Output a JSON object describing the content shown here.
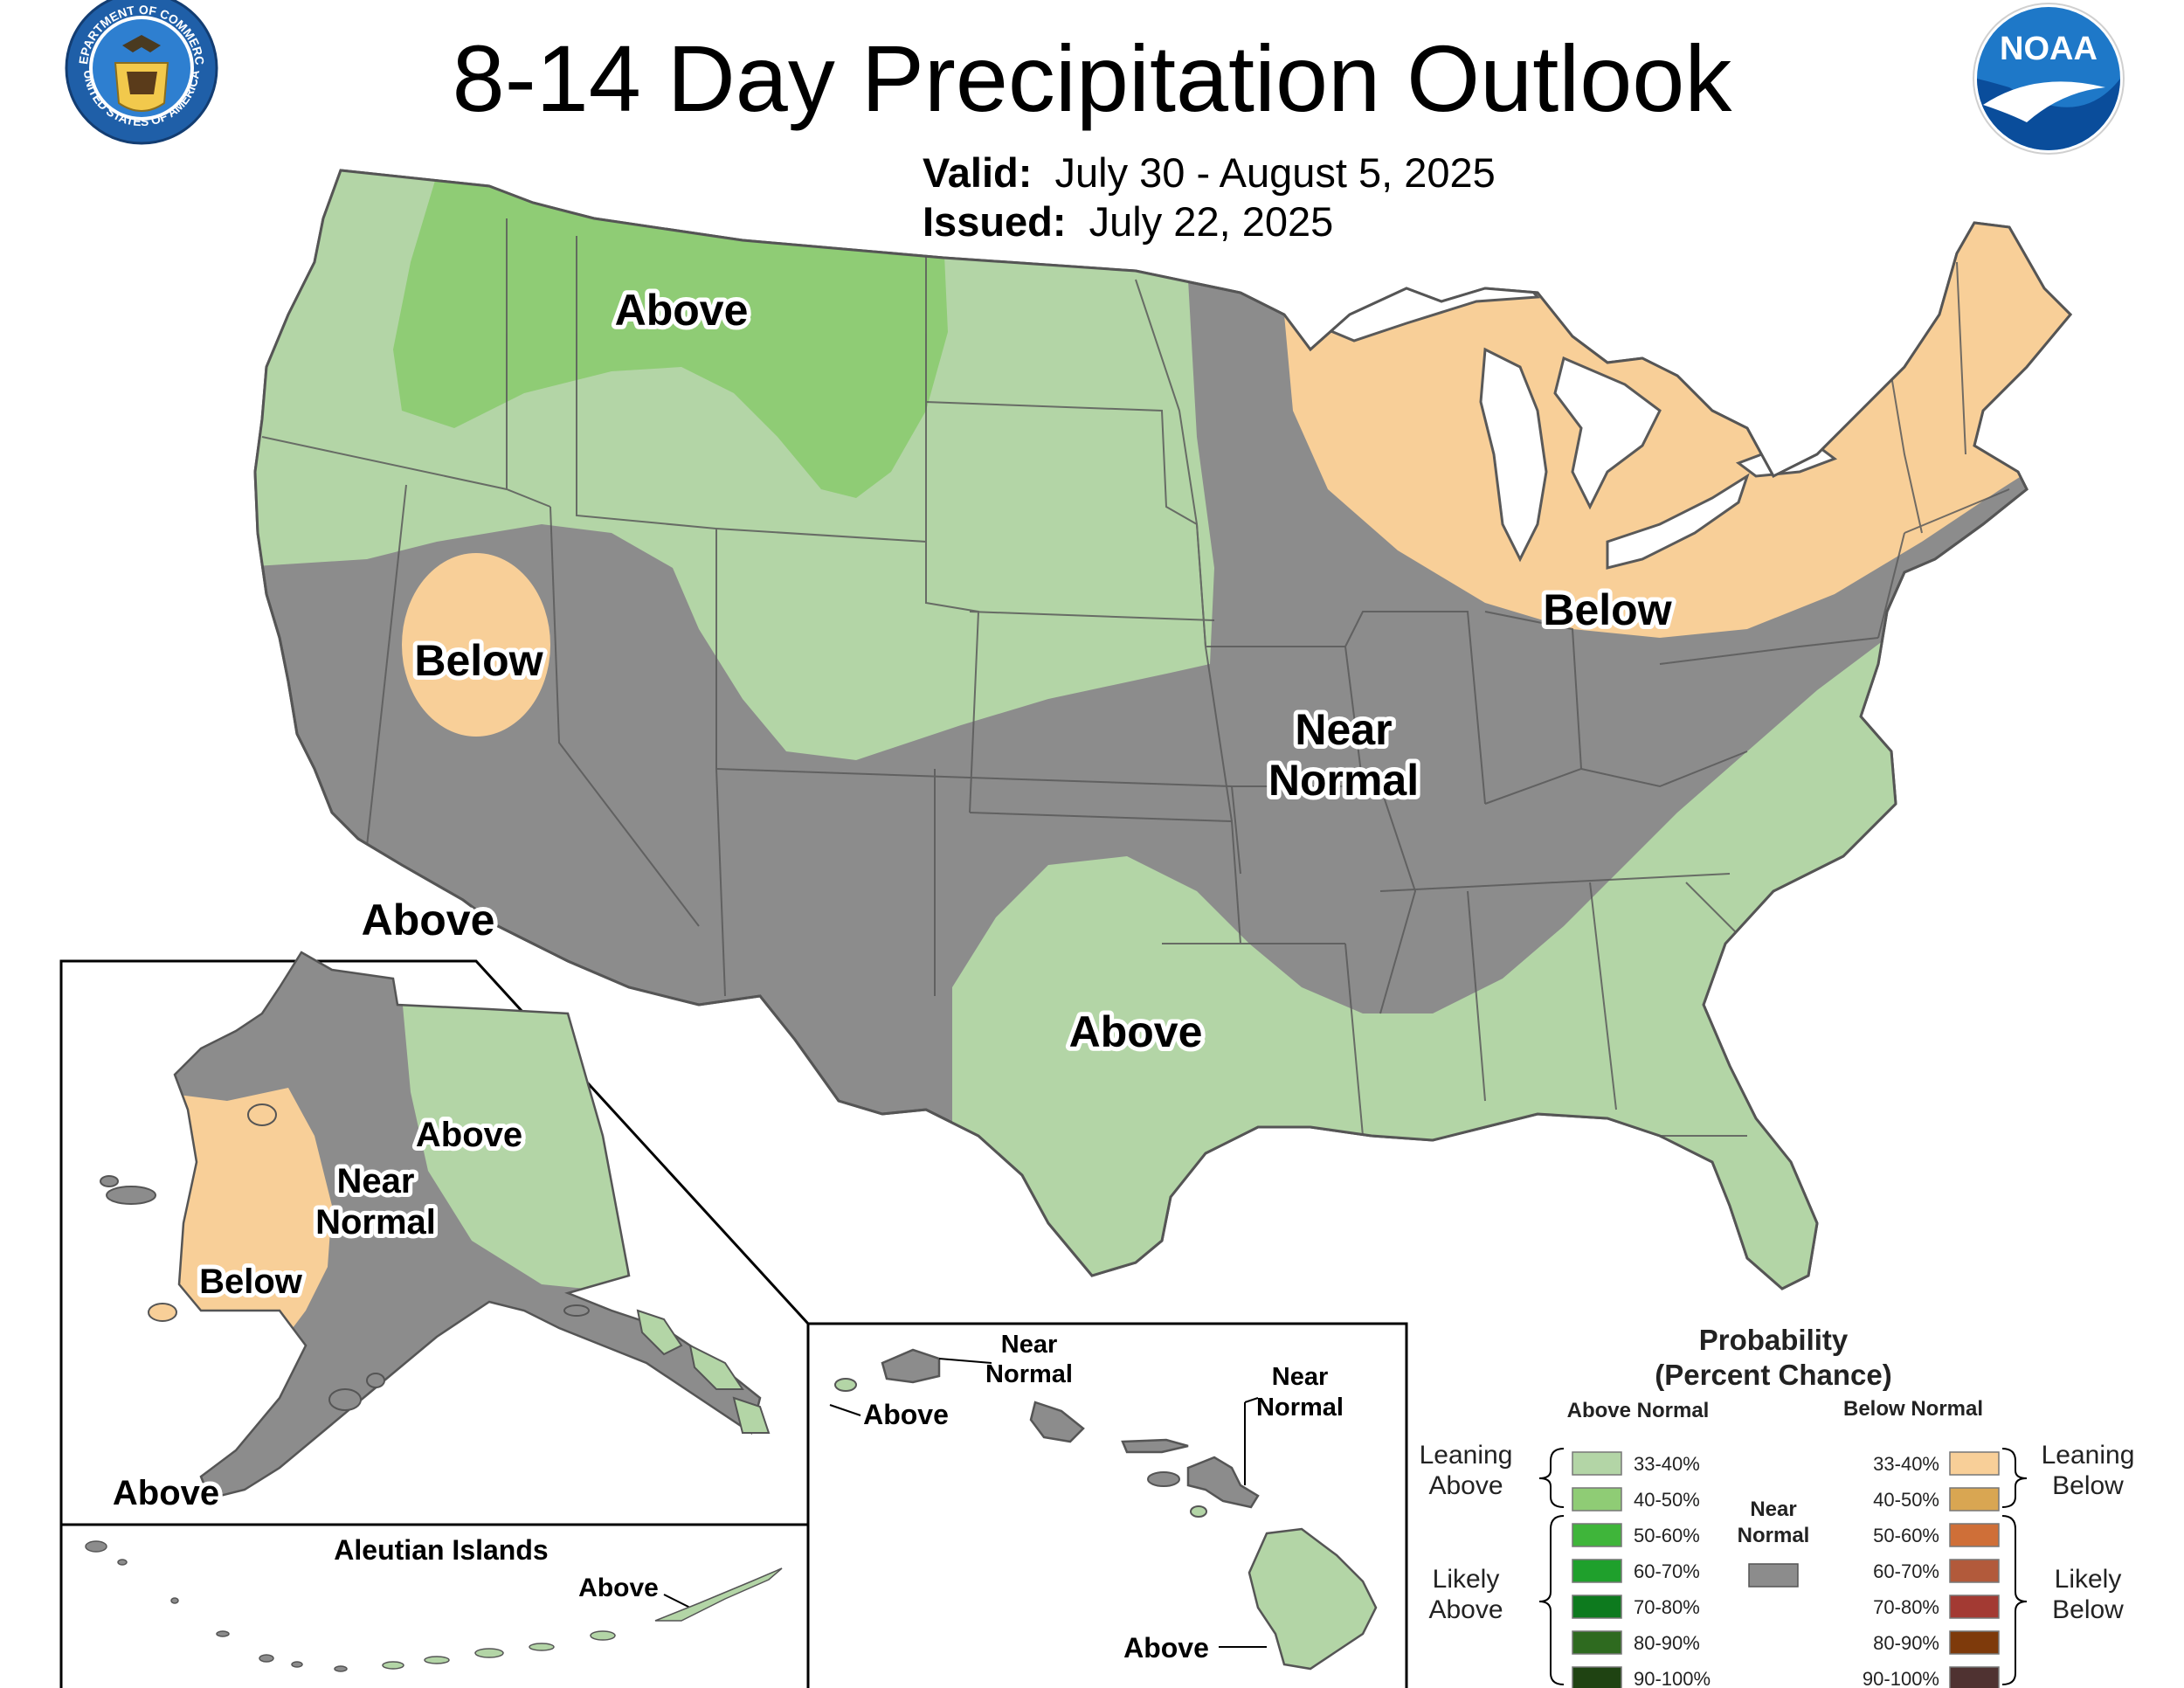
{
  "header": {
    "title": "8-14 Day Precipitation Outlook",
    "valid_label": "Valid:",
    "valid_value": "July 30 - August 5, 2025",
    "issued_label": "Issued:",
    "issued_value": "July 22, 2025"
  },
  "logos": {
    "commerce_top": "DEPARTMENT OF COMMERCE",
    "commerce_bottom": "UNITED STATES OF AMERICA",
    "noaa": "NOAA"
  },
  "colors": {
    "above_33_40": "#b3d5a6",
    "above_40_50": "#8fcc75",
    "near_normal": "#8c8c8c",
    "below_33_40": "#f8cf98",
    "water": "#ffffff",
    "border": "#595959"
  },
  "conus_labels": {
    "above_north": "Above",
    "below_nevada": "Below",
    "below_northeast": "Below",
    "near_normal_line1": "Near",
    "near_normal_line2": "Normal",
    "above_california": "Above",
    "above_texas": "Above"
  },
  "alaska": {
    "above_east": "Above",
    "near_line1": "Near",
    "near_line2": "Normal",
    "below_west": "Below",
    "above_south": "Above",
    "aleutian_title": "Aleutian Islands",
    "aleutian_above": "Above"
  },
  "hawaii": {
    "near1_line1": "Near",
    "near1_line2": "Normal",
    "near2_line1": "Near",
    "near2_line2": "Normal",
    "above_kauai": "Above",
    "above_big_island": "Above"
  },
  "legend": {
    "title_line1": "Probability",
    "title_line2": "(Percent Chance)",
    "above_header": "Above Normal",
    "below_header": "Below Normal",
    "near_line1": "Near",
    "near_line2": "Normal",
    "leaning_above_1": "Leaning",
    "leaning_above_2": "Above",
    "likely_above_1": "Likely",
    "likely_above_2": "Above",
    "leaning_below_1": "Leaning",
    "leaning_below_2": "Below",
    "likely_below_1": "Likely",
    "likely_below_2": "Below",
    "above_bins": [
      {
        "label": "33-40%",
        "color": "#b3d5a6"
      },
      {
        "label": "40-50%",
        "color": "#8fcc75"
      },
      {
        "label": "50-60%",
        "color": "#3fb53a"
      },
      {
        "label": "60-70%",
        "color": "#1fa02c"
      },
      {
        "label": "70-80%",
        "color": "#0d7a1e"
      },
      {
        "label": "80-90%",
        "color": "#2e6a1f"
      },
      {
        "label": "90-100%",
        "color": "#1f4312"
      }
    ],
    "below_bins": [
      {
        "label": "33-40%",
        "color": "#f8cf98"
      },
      {
        "label": "40-50%",
        "color": "#d9a652"
      },
      {
        "label": "50-60%",
        "color": "#cf6f38"
      },
      {
        "label": "60-70%",
        "color": "#b25a3b"
      },
      {
        "label": "70-80%",
        "color": "#a33a33"
      },
      {
        "label": "80-90%",
        "color": "#7e3a0b"
      },
      {
        "label": "90-100%",
        "color": "#4f3231"
      }
    ]
  }
}
